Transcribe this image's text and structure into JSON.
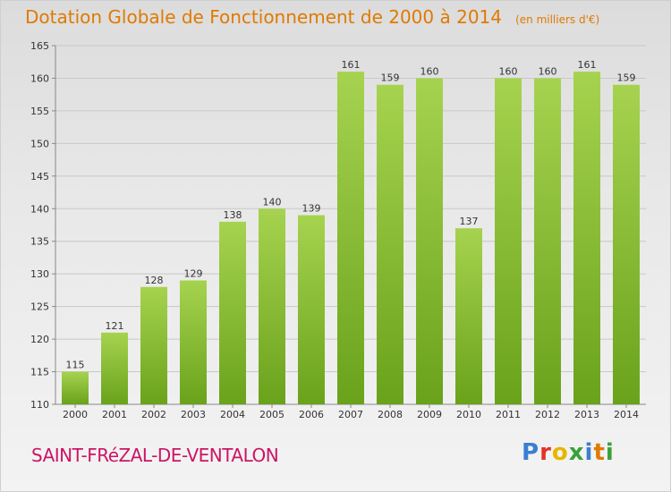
{
  "header": {
    "title": "Dotation Globale de Fonctionnement de 2000 à 2014",
    "unit": "(en milliers d'€)"
  },
  "footer": {
    "commune": "SAINT-FRéZAL-DE-VENTALON",
    "logo": "Proxiti",
    "logo_colors": [
      "#3a7fd0",
      "#e0332b",
      "#e8b500",
      "#3aa13a",
      "#3a7fd0",
      "#e07a00",
      "#3aa13a"
    ]
  },
  "colors": {
    "bar_light": "#a6d34f",
    "bar_dark": "#6aa21c",
    "axis_text": "#333333",
    "grid": "#c8c8c8"
  },
  "chart_data": {
    "type": "bar",
    "title": "Dotation Globale de Fonctionnement de 2000 à 2014",
    "categories": [
      "2000",
      "2001",
      "2002",
      "2003",
      "2004",
      "2005",
      "2006",
      "2007",
      "2008",
      "2009",
      "2010",
      "2011",
      "2012",
      "2013",
      "2014"
    ],
    "values": [
      115,
      121,
      128,
      129,
      138,
      140,
      139,
      161,
      159,
      160,
      137,
      160,
      160,
      161,
      159
    ],
    "ylim": [
      110,
      165
    ],
    "yticks": [
      110,
      115,
      120,
      125,
      130,
      135,
      140,
      145,
      150,
      155,
      160,
      165
    ],
    "grid": true,
    "data_labels": true
  }
}
